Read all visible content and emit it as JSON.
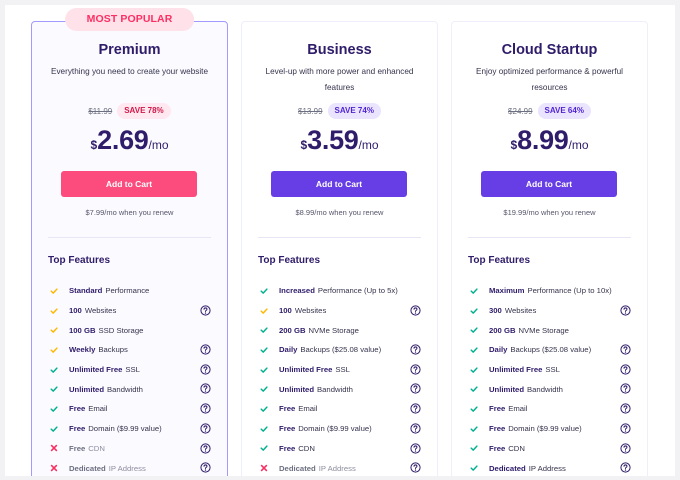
{
  "colors": {
    "brand_dark": "#2f1c6a",
    "primary_purple": "#673de6",
    "accent_pink": "#fc4b7d",
    "check_green": "#00b090",
    "check_yellow": "#ffb800",
    "cross_red": "#fc2f63"
  },
  "plans": [
    {
      "badge": "MOST POPULAR",
      "name": "Premium",
      "subtitle": "Everything you need to create your website",
      "old_price": "$11.99",
      "save": "SAVE 78%",
      "currency": "$",
      "price": "2.69",
      "period": "/mo",
      "cta": "Add to Cart",
      "renew": "$7.99/mo when you renew",
      "features_title": "Top Features",
      "features": [
        {
          "bold": "Standard",
          "text": "Performance",
          "icon": "check-yellow",
          "help": false
        },
        {
          "bold": "100",
          "text": "Websites",
          "icon": "check-yellow",
          "help": true
        },
        {
          "bold": "100 GB",
          "text": "SSD Storage",
          "icon": "check-yellow",
          "help": false
        },
        {
          "bold": "Weekly",
          "text": "Backups",
          "icon": "check-yellow",
          "help": true
        },
        {
          "bold": "Unlimited Free",
          "text": "SSL",
          "icon": "check-green",
          "help": true
        },
        {
          "bold": "Unlimited",
          "text": "Bandwidth",
          "icon": "check-green",
          "help": true
        },
        {
          "bold": "Free",
          "text": "Email",
          "icon": "check-green",
          "help": true
        },
        {
          "bold": "Free",
          "text": "Domain ($9.99 value)",
          "icon": "check-green",
          "help": true
        },
        {
          "bold": "Free",
          "text": "CDN",
          "icon": "cross",
          "help": true
        },
        {
          "bold": "Dedicated",
          "text": "IP Address",
          "icon": "cross",
          "help": true
        }
      ]
    },
    {
      "name": "Business",
      "subtitle": "Level-up with more power and enhanced features",
      "old_price": "$13.99",
      "save": "SAVE 74%",
      "currency": "$",
      "price": "3.59",
      "period": "/mo",
      "cta": "Add to Cart",
      "renew": "$8.99/mo when you renew",
      "features_title": "Top Features",
      "features": [
        {
          "bold": "Increased",
          "text": "Performance (Up to 5x)",
          "icon": "check-green",
          "help": false
        },
        {
          "bold": "100",
          "text": "Websites",
          "icon": "check-yellow",
          "help": true
        },
        {
          "bold": "200 GB",
          "text": "NVMe Storage",
          "icon": "check-green",
          "help": false
        },
        {
          "bold": "Daily",
          "text": "Backups ($25.08 value)",
          "icon": "check-green",
          "help": true
        },
        {
          "bold": "Unlimited Free",
          "text": "SSL",
          "icon": "check-green",
          "help": true
        },
        {
          "bold": "Unlimited",
          "text": "Bandwidth",
          "icon": "check-green",
          "help": true
        },
        {
          "bold": "Free",
          "text": "Email",
          "icon": "check-green",
          "help": true
        },
        {
          "bold": "Free",
          "text": "Domain ($9.99 value)",
          "icon": "check-green",
          "help": true
        },
        {
          "bold": "Free",
          "text": "CDN",
          "icon": "check-green",
          "help": true
        },
        {
          "bold": "Dedicated",
          "text": "IP Address",
          "icon": "cross",
          "help": true
        }
      ]
    },
    {
      "name": "Cloud Startup",
      "subtitle": "Enjoy optimized performance & powerful resources",
      "old_price": "$24.99",
      "save": "SAVE 64%",
      "currency": "$",
      "price": "8.99",
      "period": "/mo",
      "cta": "Add to Cart",
      "renew": "$19.99/mo when you renew",
      "features_title": "Top Features",
      "features": [
        {
          "bold": "Maximum",
          "text": "Performance (Up to 10x)",
          "icon": "check-green",
          "help": false
        },
        {
          "bold": "300",
          "text": "Websites",
          "icon": "check-green",
          "help": true
        },
        {
          "bold": "200 GB",
          "text": "NVMe Storage",
          "icon": "check-green",
          "help": false
        },
        {
          "bold": "Daily",
          "text": "Backups ($25.08 value)",
          "icon": "check-green",
          "help": true
        },
        {
          "bold": "Unlimited Free",
          "text": "SSL",
          "icon": "check-green",
          "help": true
        },
        {
          "bold": "Unlimited",
          "text": "Bandwidth",
          "icon": "check-green",
          "help": true
        },
        {
          "bold": "Free",
          "text": "Email",
          "icon": "check-green",
          "help": true
        },
        {
          "bold": "Free",
          "text": "Domain ($9.99 value)",
          "icon": "check-green",
          "help": true
        },
        {
          "bold": "Free",
          "text": "CDN",
          "icon": "check-green",
          "help": true
        },
        {
          "bold": "Dedicated",
          "text": "IP Address",
          "icon": "check-green",
          "help": true
        }
      ]
    }
  ]
}
